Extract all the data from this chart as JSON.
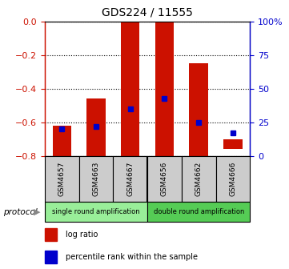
{
  "title": "GDS224 / 11555",
  "samples": [
    "GSM4657",
    "GSM4663",
    "GSM4667",
    "GSM4656",
    "GSM4662",
    "GSM4666"
  ],
  "log_ratio_bottoms": [
    -0.82,
    -0.82,
    -0.82,
    -0.82,
    -0.82,
    -0.76
  ],
  "log_ratio_tops": [
    -0.62,
    -0.46,
    0.0,
    0.0,
    -0.25,
    -0.7
  ],
  "percentile_ranks": [
    20,
    22,
    35,
    43,
    25,
    17
  ],
  "protocol_groups": [
    {
      "label": "single round amplification",
      "start": 0,
      "end": 3,
      "color": "#99ee99"
    },
    {
      "label": "double round amplification",
      "start": 3,
      "end": 6,
      "color": "#55cc55"
    }
  ],
  "ylim_left": [
    -0.8,
    0.0
  ],
  "ylim_right": [
    0,
    100
  ],
  "bar_color": "#cc1100",
  "dot_color": "#0000cc",
  "tick_color_left": "#cc1100",
  "tick_color_right": "#0000cc",
  "sample_box_color": "#cccccc",
  "legend_items": [
    {
      "color": "#cc1100",
      "label": "log ratio"
    },
    {
      "color": "#0000cc",
      "label": "percentile rank within the sample"
    }
  ]
}
